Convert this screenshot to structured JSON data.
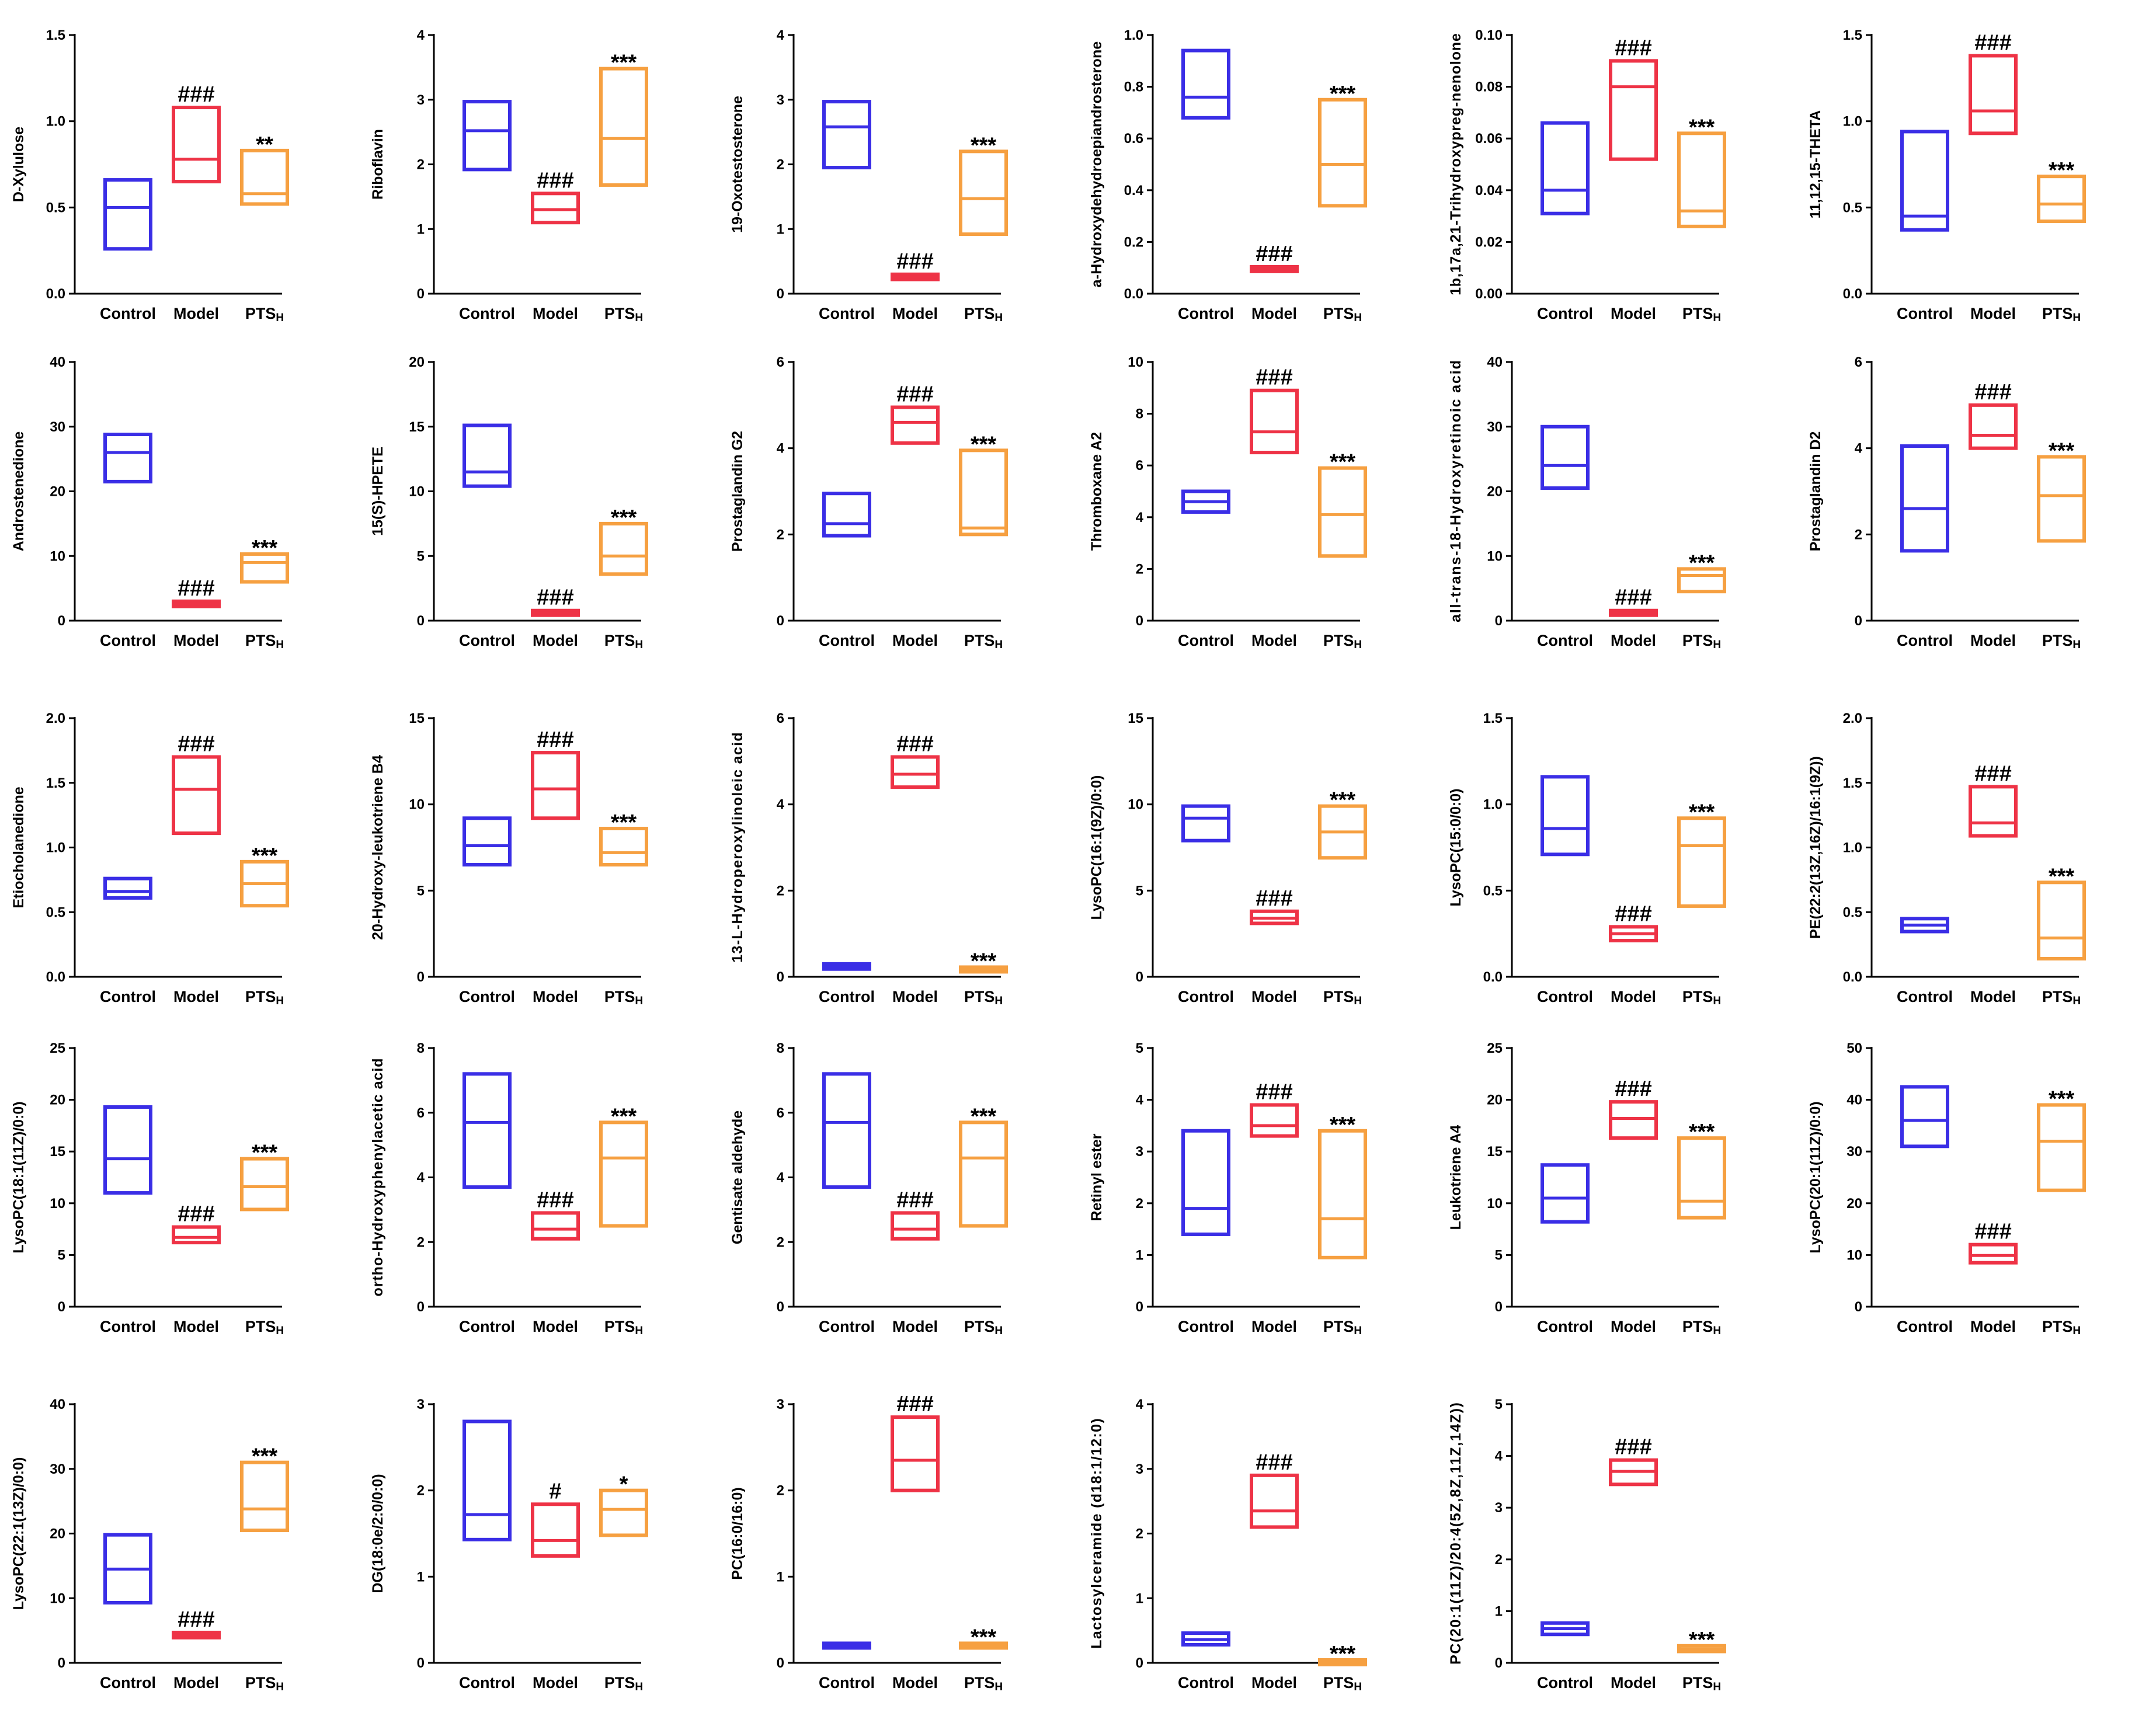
{
  "figure": {
    "colors": {
      "Control": "#3a2ee6",
      "Model": "#ee3346",
      "PTS": "#f6a041",
      "axis": "#000000"
    },
    "groups": [
      {
        "key": "Control",
        "label": "Control",
        "sub": ""
      },
      {
        "key": "Model",
        "label": "Model",
        "sub": ""
      },
      {
        "key": "PTS",
        "label": "PTS",
        "sub": "H"
      }
    ]
  },
  "chart_data": [
    {
      "type": "box",
      "ylabel": "D-Xylulose",
      "ylim": [
        0,
        1.5
      ],
      "yticks": [
        "0.0",
        "0.5",
        "1.0",
        "1.5"
      ],
      "boxes": [
        {
          "min": 0.26,
          "median": 0.5,
          "max": 0.66,
          "ann": ""
        },
        {
          "min": 0.65,
          "median": 0.78,
          "max": 1.08,
          "ann": "###"
        },
        {
          "min": 0.52,
          "median": 0.58,
          "max": 0.83,
          "ann": "**"
        }
      ]
    },
    {
      "type": "box",
      "ylabel": "Riboflavin",
      "ylim": [
        0,
        4
      ],
      "yticks": [
        "0",
        "1",
        "2",
        "3",
        "4"
      ],
      "boxes": [
        {
          "min": 1.92,
          "median": 2.52,
          "max": 2.97,
          "ann": ""
        },
        {
          "min": 1.1,
          "median": 1.3,
          "max": 1.55,
          "ann": "###"
        },
        {
          "min": 1.68,
          "median": 2.4,
          "max": 3.48,
          "ann": "***"
        }
      ]
    },
    {
      "type": "box",
      "ylabel": "19-Oxotestosterone",
      "ylim": [
        0,
        4
      ],
      "yticks": [
        "0",
        "1",
        "2",
        "3",
        "4"
      ],
      "boxes": [
        {
          "min": 1.95,
          "median": 2.58,
          "max": 2.97,
          "ann": ""
        },
        {
          "min": 0.22,
          "median": 0.26,
          "max": 0.3,
          "ann": "###"
        },
        {
          "min": 0.92,
          "median": 1.47,
          "max": 2.2,
          "ann": "***"
        }
      ]
    },
    {
      "type": "box",
      "ylabel": "a-Hydroxydehydroepiandrosterone",
      "ylim": [
        0,
        1.0
      ],
      "yticks": [
        "0.0",
        "0.2",
        "0.4",
        "0.6",
        "0.8",
        "1.0"
      ],
      "boxes": [
        {
          "min": 0.68,
          "median": 0.76,
          "max": 0.94,
          "ann": ""
        },
        {
          "min": 0.09,
          "median": 0.095,
          "max": 0.1,
          "ann": "###"
        },
        {
          "min": 0.34,
          "median": 0.5,
          "max": 0.75,
          "ann": "***"
        }
      ]
    },
    {
      "type": "box",
      "ylabel": "1b,17a,21-Trihydroxypreg-nenolone",
      "ylim": [
        0,
        0.1
      ],
      "yticks": [
        "0.00",
        "0.02",
        "0.04",
        "0.06",
        "0.08",
        "0.10"
      ],
      "boxes": [
        {
          "min": 0.031,
          "median": 0.04,
          "max": 0.066,
          "ann": ""
        },
        {
          "min": 0.052,
          "median": 0.08,
          "max": 0.09,
          "ann": "###"
        },
        {
          "min": 0.026,
          "median": 0.032,
          "max": 0.062,
          "ann": "***"
        }
      ]
    },
    {
      "type": "box",
      "ylabel": "11,12,15-THETA",
      "ylim": [
        0,
        1.5
      ],
      "yticks": [
        "0.0",
        "0.5",
        "1.0",
        "1.5"
      ],
      "boxes": [
        {
          "min": 0.37,
          "median": 0.45,
          "max": 0.94,
          "ann": ""
        },
        {
          "min": 0.93,
          "median": 1.06,
          "max": 1.38,
          "ann": "###"
        },
        {
          "min": 0.42,
          "median": 0.52,
          "max": 0.68,
          "ann": "***"
        }
      ]
    },
    {
      "type": "box",
      "ylabel": "Androstenedione",
      "ylim": [
        0,
        40
      ],
      "yticks": [
        "0",
        "10",
        "20",
        "30",
        "40"
      ],
      "boxes": [
        {
          "min": 21.5,
          "median": 26.0,
          "max": 28.8,
          "ann": ""
        },
        {
          "min": 2.2,
          "median": 2.6,
          "max": 3.0,
          "ann": "###"
        },
        {
          "min": 6.0,
          "median": 9.0,
          "max": 10.3,
          "ann": "***"
        }
      ]
    },
    {
      "type": "box",
      "ylabel": "15(S)-HPETE",
      "ylim": [
        0,
        20
      ],
      "yticks": [
        "0",
        "5",
        "10",
        "15",
        "20"
      ],
      "boxes": [
        {
          "min": 10.4,
          "median": 11.5,
          "max": 15.1,
          "ann": ""
        },
        {
          "min": 0.45,
          "median": 0.6,
          "max": 0.75,
          "ann": "###"
        },
        {
          "min": 3.6,
          "median": 5.0,
          "max": 7.5,
          "ann": "***"
        }
      ]
    },
    {
      "type": "box",
      "ylabel": "Prostaglandin G2",
      "ylim": [
        0,
        6
      ],
      "yticks": [
        "0",
        "2",
        "4",
        "6"
      ],
      "boxes": [
        {
          "min": 1.97,
          "median": 2.25,
          "max": 2.95,
          "ann": ""
        },
        {
          "min": 4.12,
          "median": 4.6,
          "max": 4.95,
          "ann": "###"
        },
        {
          "min": 2.0,
          "median": 2.15,
          "max": 3.95,
          "ann": "***"
        }
      ]
    },
    {
      "type": "box",
      "ylabel": "Thromboxane A2",
      "ylim": [
        0,
        10
      ],
      "yticks": [
        "0",
        "2",
        "4",
        "6",
        "8",
        "10"
      ],
      "boxes": [
        {
          "min": 4.2,
          "median": 4.6,
          "max": 5.0,
          "ann": ""
        },
        {
          "min": 6.5,
          "median": 7.3,
          "max": 8.9,
          "ann": "###"
        },
        {
          "min": 2.5,
          "median": 4.1,
          "max": 5.9,
          "ann": "***"
        }
      ]
    },
    {
      "type": "box",
      "ylabel": "all-trans-18-Hydroxyretinoic acid",
      "ylim": [
        0,
        40
      ],
      "yticks": [
        "0",
        "10",
        "20",
        "30",
        "40"
      ],
      "boxes": [
        {
          "min": 20.5,
          "median": 24.0,
          "max": 30.0,
          "ann": ""
        },
        {
          "min": 0.9,
          "median": 1.2,
          "max": 1.5,
          "ann": "###"
        },
        {
          "min": 4.5,
          "median": 7.0,
          "max": 8.0,
          "ann": "***"
        }
      ]
    },
    {
      "type": "box",
      "ylabel": "Prostaglandin D2",
      "ylim": [
        0,
        6
      ],
      "yticks": [
        "0",
        "2",
        "4",
        "6"
      ],
      "boxes": [
        {
          "min": 1.62,
          "median": 2.6,
          "max": 4.05,
          "ann": ""
        },
        {
          "min": 4.0,
          "median": 4.3,
          "max": 5.0,
          "ann": "###"
        },
        {
          "min": 1.85,
          "median": 2.9,
          "max": 3.8,
          "ann": "***"
        }
      ]
    },
    {
      "type": "box",
      "ylabel": "Etiocholanedione",
      "ylim": [
        0,
        2.0
      ],
      "yticks": [
        "0.0",
        "0.5",
        "1.0",
        "1.5",
        "2.0"
      ],
      "boxes": [
        {
          "min": 0.61,
          "median": 0.66,
          "max": 0.76,
          "ann": ""
        },
        {
          "min": 1.11,
          "median": 1.45,
          "max": 1.7,
          "ann": "###"
        },
        {
          "min": 0.55,
          "median": 0.72,
          "max": 0.89,
          "ann": "***"
        }
      ]
    },
    {
      "type": "box",
      "ylabel": "20-Hydroxy-leukotriene B4",
      "ylim": [
        0,
        15
      ],
      "yticks": [
        "0",
        "5",
        "10",
        "15"
      ],
      "boxes": [
        {
          "min": 6.5,
          "median": 7.6,
          "max": 9.2,
          "ann": ""
        },
        {
          "min": 9.2,
          "median": 10.9,
          "max": 13.0,
          "ann": "###"
        },
        {
          "min": 6.5,
          "median": 7.2,
          "max": 8.6,
          "ann": "***"
        }
      ]
    },
    {
      "type": "box",
      "ylabel": "13-L-Hydroperoxylinoleic acid",
      "ylim": [
        0,
        6
      ],
      "yticks": [
        "0",
        "2",
        "4",
        "6"
      ],
      "boxes": [
        {
          "min": 0.18,
          "median": 0.24,
          "max": 0.3,
          "ann": ""
        },
        {
          "min": 4.4,
          "median": 4.7,
          "max": 5.1,
          "ann": "###"
        },
        {
          "min": 0.14,
          "median": 0.17,
          "max": 0.2,
          "ann": "***"
        }
      ]
    },
    {
      "type": "box",
      "ylabel": "LysoPC(16:1(9Z)/0:0)",
      "ylim": [
        0,
        15
      ],
      "yticks": [
        "0",
        "5",
        "10",
        "15"
      ],
      "boxes": [
        {
          "min": 7.9,
          "median": 9.2,
          "max": 9.9,
          "ann": ""
        },
        {
          "min": 3.1,
          "median": 3.4,
          "max": 3.8,
          "ann": "###"
        },
        {
          "min": 6.9,
          "median": 8.4,
          "max": 9.9,
          "ann": "***"
        }
      ]
    },
    {
      "type": "box",
      "ylabel": "LysoPC(15:0/0:0)",
      "ylim": [
        0,
        1.5
      ],
      "yticks": [
        "0.0",
        "0.5",
        "1.0",
        "1.5"
      ],
      "boxes": [
        {
          "min": 0.71,
          "median": 0.86,
          "max": 1.16,
          "ann": ""
        },
        {
          "min": 0.21,
          "median": 0.25,
          "max": 0.29,
          "ann": "###"
        },
        {
          "min": 0.41,
          "median": 0.76,
          "max": 0.92,
          "ann": "***"
        }
      ]
    },
    {
      "type": "box",
      "ylabel": "PE(22:2(13Z,16Z)/16:1(9Z))",
      "ylim": [
        0,
        2.0
      ],
      "yticks": [
        "0.0",
        "0.5",
        "1.0",
        "1.5",
        "2.0"
      ],
      "boxes": [
        {
          "min": 0.35,
          "median": 0.4,
          "max": 0.45,
          "ann": ""
        },
        {
          "min": 1.09,
          "median": 1.19,
          "max": 1.47,
          "ann": "###"
        },
        {
          "min": 0.14,
          "median": 0.3,
          "max": 0.73,
          "ann": "***"
        }
      ]
    },
    {
      "type": "box",
      "ylabel": "LysoPC(18:1(11Z)/0:0)",
      "ylim": [
        0,
        25
      ],
      "yticks": [
        "0",
        "5",
        "10",
        "15",
        "20",
        "25"
      ],
      "boxes": [
        {
          "min": 11.0,
          "median": 14.3,
          "max": 19.3,
          "ann": ""
        },
        {
          "min": 6.2,
          "median": 6.7,
          "max": 7.7,
          "ann": "###"
        },
        {
          "min": 9.4,
          "median": 11.6,
          "max": 14.3,
          "ann": "***"
        }
      ]
    },
    {
      "type": "box",
      "ylabel": "ortho-Hydroxyphenylacetic acid",
      "ylim": [
        0,
        8
      ],
      "yticks": [
        "0",
        "2",
        "4",
        "6",
        "8"
      ],
      "boxes": [
        {
          "min": 3.7,
          "median": 5.7,
          "max": 7.2,
          "ann": ""
        },
        {
          "min": 2.1,
          "median": 2.4,
          "max": 2.9,
          "ann": "###"
        },
        {
          "min": 2.5,
          "median": 4.6,
          "max": 5.7,
          "ann": "***"
        }
      ]
    },
    {
      "type": "box",
      "ylabel": "Gentisate aldehyde",
      "ylim": [
        0,
        8
      ],
      "yticks": [
        "0",
        "2",
        "4",
        "6",
        "8"
      ],
      "boxes": [
        {
          "min": 3.7,
          "median": 5.7,
          "max": 7.2,
          "ann": ""
        },
        {
          "min": 2.1,
          "median": 2.4,
          "max": 2.9,
          "ann": "###"
        },
        {
          "min": 2.5,
          "median": 4.6,
          "max": 5.7,
          "ann": "***"
        }
      ]
    },
    {
      "type": "box",
      "ylabel": "Retinyl ester",
      "ylim": [
        0,
        5
      ],
      "yticks": [
        "0",
        "1",
        "2",
        "3",
        "4",
        "5"
      ],
      "boxes": [
        {
          "min": 1.4,
          "median": 1.9,
          "max": 3.4,
          "ann": ""
        },
        {
          "min": 3.3,
          "median": 3.5,
          "max": 3.9,
          "ann": "###"
        },
        {
          "min": 0.95,
          "median": 1.7,
          "max": 3.4,
          "ann": "***"
        }
      ]
    },
    {
      "type": "box",
      "ylabel": "Leukotriene A4",
      "ylim": [
        0,
        25
      ],
      "yticks": [
        "0",
        "5",
        "10",
        "15",
        "20",
        "25"
      ],
      "boxes": [
        {
          "min": 8.2,
          "median": 10.5,
          "max": 13.7,
          "ann": ""
        },
        {
          "min": 16.3,
          "median": 18.2,
          "max": 19.8,
          "ann": "###"
        },
        {
          "min": 8.6,
          "median": 10.2,
          "max": 16.3,
          "ann": "***"
        }
      ]
    },
    {
      "type": "box",
      "ylabel": "LysoPC(20:1(11Z)/0:0)",
      "ylim": [
        0,
        50
      ],
      "yticks": [
        "0",
        "10",
        "20",
        "30",
        "40",
        "50"
      ],
      "boxes": [
        {
          "min": 31.0,
          "median": 36.0,
          "max": 42.5,
          "ann": ""
        },
        {
          "min": 8.5,
          "median": 9.9,
          "max": 12.0,
          "ann": "###"
        },
        {
          "min": 22.5,
          "median": 32.0,
          "max": 39.0,
          "ann": "***"
        }
      ]
    },
    {
      "type": "box",
      "ylabel": "LysoPC(22:1(13Z)/0:0)",
      "ylim": [
        0,
        40
      ],
      "yticks": [
        "0",
        "10",
        "20",
        "30",
        "40"
      ],
      "boxes": [
        {
          "min": 9.3,
          "median": 14.5,
          "max": 19.8,
          "ann": ""
        },
        {
          "min": 3.9,
          "median": 4.3,
          "max": 4.7,
          "ann": "###"
        },
        {
          "min": 20.5,
          "median": 23.8,
          "max": 31.0,
          "ann": "***"
        }
      ]
    },
    {
      "type": "box",
      "ylabel": "DG(18:0e/2:0/0:0)",
      "ylim": [
        0,
        3
      ],
      "yticks": [
        "0",
        "1",
        "2",
        "3"
      ],
      "boxes": [
        {
          "min": 1.43,
          "median": 1.72,
          "max": 2.8,
          "ann": ""
        },
        {
          "min": 1.24,
          "median": 1.42,
          "max": 1.84,
          "ann": "#"
        },
        {
          "min": 1.48,
          "median": 1.78,
          "max": 2.0,
          "ann": "*"
        }
      ]
    },
    {
      "type": "box",
      "ylabel": "PC(16:0/16:0)",
      "ylim": [
        0,
        3
      ],
      "yticks": [
        "0",
        "1",
        "2",
        "3"
      ],
      "boxes": [
        {
          "min": 0.19,
          "median": 0.2,
          "max": 0.21,
          "ann": ""
        },
        {
          "min": 2.0,
          "median": 2.35,
          "max": 2.85,
          "ann": "###"
        },
        {
          "min": 0.19,
          "median": 0.2,
          "max": 0.21,
          "ann": "***"
        }
      ]
    },
    {
      "type": "box",
      "ylabel": "Lactosylceramide (d18:1/12:0)",
      "ylim": [
        0,
        4
      ],
      "yticks": [
        "0",
        "1",
        "2",
        "3",
        "4"
      ],
      "boxes": [
        {
          "min": 0.28,
          "median": 0.36,
          "max": 0.46,
          "ann": ""
        },
        {
          "min": 2.1,
          "median": 2.35,
          "max": 2.9,
          "ann": "###"
        },
        {
          "min": 0.0,
          "median": 0.01,
          "max": 0.02,
          "ann": "***"
        }
      ]
    },
    {
      "type": "box",
      "ylabel": "PC(20:1(11Z)/20:4(5Z,8Z,11Z,14Z))",
      "ylim": [
        0,
        5
      ],
      "yticks": [
        "0",
        "1",
        "2",
        "3",
        "4",
        "5"
      ],
      "boxes": [
        {
          "min": 0.55,
          "median": 0.66,
          "max": 0.77,
          "ann": ""
        },
        {
          "min": 3.45,
          "median": 3.7,
          "max": 3.92,
          "ann": "###"
        },
        {
          "min": 0.22,
          "median": 0.27,
          "max": 0.33,
          "ann": "***"
        }
      ]
    }
  ]
}
